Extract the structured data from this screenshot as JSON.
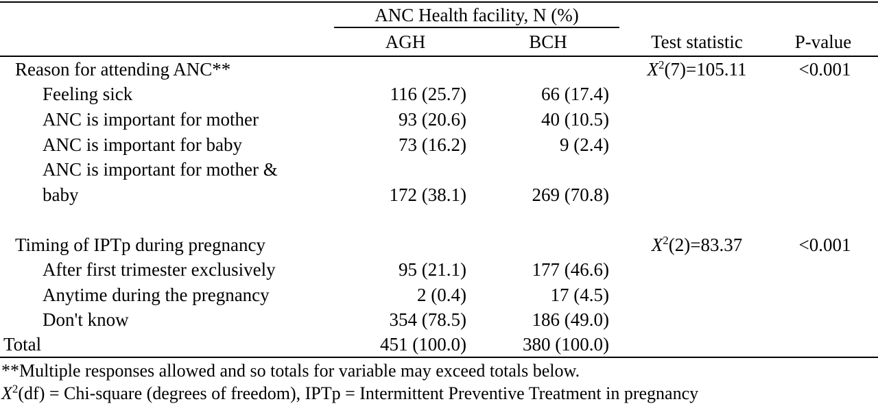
{
  "header": {
    "facility_group": "ANC Health facility, N (%)",
    "col_agh": "AGH",
    "col_bch": "BCH",
    "col_test": "Test statistic",
    "col_p": "P-value"
  },
  "section1": {
    "label": "Reason for attending ANC**",
    "test_symbol": "X",
    "test_sup": "2",
    "test_rest": "(7)=105.11",
    "p_value": "<0.001",
    "rows": [
      {
        "label": "Feeling sick",
        "agh": "116 (25.7)",
        "bch": "66 (17.4)"
      },
      {
        "label": "ANC is important for mother",
        "agh": "93 (20.6)",
        "bch": "40 (10.5)"
      },
      {
        "label": "ANC is important for baby",
        "agh": "73 (16.2)",
        "bch": "9 (2.4)"
      },
      {
        "label_line1": "ANC is important for mother &",
        "label_line2": "baby",
        "agh": "172 (38.1)",
        "bch": "269 (70.8)"
      }
    ]
  },
  "section2": {
    "label": "Timing of IPTp during pregnancy",
    "test_symbol": "X",
    "test_sup": "2",
    "test_rest": "(2)=83.37",
    "p_value": "<0.001",
    "rows": [
      {
        "label": "After first trimester exclusively",
        "agh": "95 (21.1)",
        "bch": "177 (46.6)"
      },
      {
        "label": "Anytime during the pregnancy",
        "agh": "2 (0.4)",
        "bch": "17 (4.5)"
      },
      {
        "label": "Don't know",
        "agh": "354 (78.5)",
        "bch": "186 (49.0)"
      }
    ]
  },
  "total": {
    "label": "Total",
    "agh": "451 (100.0)",
    "bch": "380 (100.0)"
  },
  "footnotes": {
    "note1": "**Multiple responses allowed and so totals for variable may exceed totals below.",
    "note2_symbol": "X",
    "note2_sup": "2",
    "note2_rest": "(df) = Chi-square (degrees of freedom), IPTp = Intermittent Preventive Treatment in pregnancy"
  }
}
